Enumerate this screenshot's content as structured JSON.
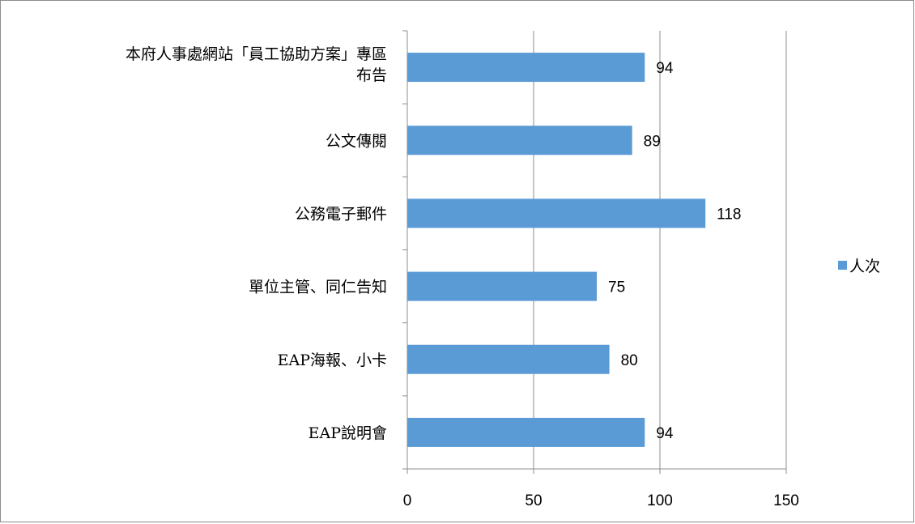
{
  "chart_data": {
    "type": "bar",
    "orientation": "horizontal",
    "title": "",
    "xlabel": "",
    "ylabel": "",
    "categories": [
      [
        "本府人事處網站「員工協助方案」專區",
        "布告"
      ],
      [
        "公文傳閱"
      ],
      [
        "公務電子郵件"
      ],
      [
        "單位主管、同仁告知"
      ],
      [
        "EAP海報、小卡"
      ],
      [
        "EAP說明會"
      ]
    ],
    "series": [
      {
        "name": "人次",
        "values": [
          94,
          89,
          118,
          75,
          80,
          94
        ],
        "color": "#5b9bd5"
      }
    ],
    "xlim": [
      0,
      150
    ],
    "xticks": [
      0,
      50,
      100,
      150
    ],
    "grid": true,
    "legend_position": "right",
    "gridline_color": "#8c8c8c",
    "axis_color": "#8c8c8c"
  }
}
